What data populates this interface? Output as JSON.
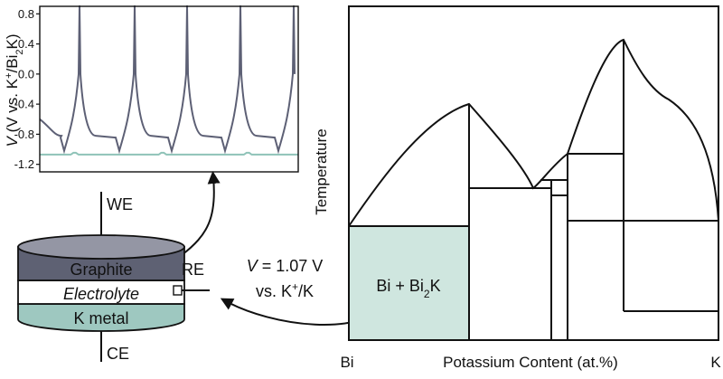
{
  "colors": {
    "bi_bi2k_fill": "#cfe6df",
    "graphite": "#5e6173",
    "graphite_top": "#9496a4",
    "k_metal": "#9ec8c0",
    "k_metal_side": "#86b5ac",
    "electrolyte": "#ffffff",
    "curve_v": "#5d6075",
    "curve_k": "#8fc3b8"
  },
  "inset_plot": {
    "y_axis_label": {
      "prefix": "V",
      "rest": " (V vs. K",
      "sup": "+",
      "mid": "/Bi",
      "sub": "2",
      "end": "K)"
    },
    "y_ticks": [
      "0.8",
      "0.4",
      "0.0",
      "-0.4",
      "-0.8",
      "-1.2"
    ],
    "y_tick_values": [
      0.8,
      0.4,
      0.0,
      -0.4,
      -0.8,
      -1.2
    ],
    "ylim": [
      -1.3,
      0.9
    ],
    "k_reference_level": -1.07,
    "cycle_count": 5
  },
  "cell": {
    "we_label": "WE",
    "ce_label": "CE",
    "re_label": "RE",
    "layers": {
      "graphite": "Graphite",
      "electrolyte": "Electrolyte",
      "k_metal": "K metal"
    }
  },
  "annotation": {
    "line1_var": "V",
    "line1_rest": " = 1.07 V",
    "line2_pre": "vs. K",
    "line2_sup": "+",
    "line2_post": "/K"
  },
  "phase_diagram": {
    "y_axis_label": "Temperature",
    "x_axis_label": "Potassium Content (at.%)",
    "x_left_label": "Bi",
    "x_right_label": "K",
    "region_label": {
      "pre": "Bi + Bi",
      "sub": "2",
      "post": "K"
    }
  }
}
